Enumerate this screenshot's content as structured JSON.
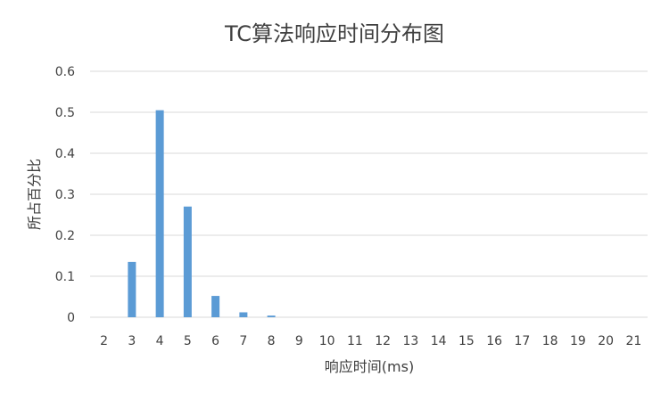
{
  "chart_data": {
    "type": "bar",
    "title": "TC算法响应时间分布图",
    "xlabel": "响应时间(ms)",
    "ylabel": "所占百分比",
    "categories": [
      "2",
      "3",
      "4",
      "5",
      "6",
      "7",
      "8",
      "9",
      "10",
      "11",
      "12",
      "13",
      "14",
      "15",
      "16",
      "17",
      "18",
      "19",
      "20",
      "21"
    ],
    "values": [
      0,
      0.135,
      0.505,
      0.27,
      0.052,
      0.012,
      0.004,
      0,
      0,
      0,
      0,
      0,
      0,
      0,
      0,
      0,
      0,
      0,
      0,
      0
    ],
    "ylim": [
      0,
      0.6
    ],
    "yticks": [
      "0",
      "0.1",
      "0.2",
      "0.3",
      "0.4",
      "0.5",
      "0.6"
    ],
    "grid": true,
    "bar_color": "#5b9bd5"
  }
}
